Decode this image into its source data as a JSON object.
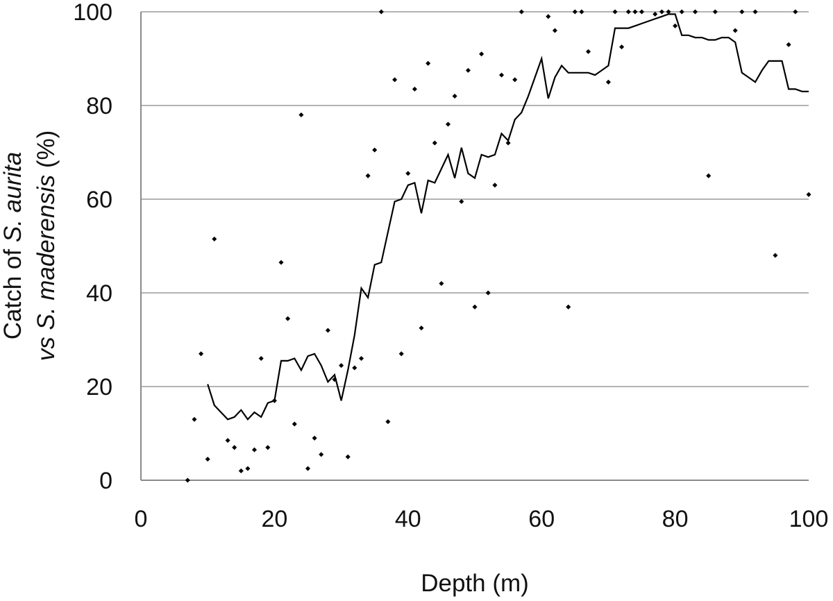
{
  "chart_data": {
    "type": "scatter",
    "title": "",
    "xlabel": "Depth (m)",
    "ylabel": {
      "line1": [
        {
          "text": "Catch of ",
          "italic": false
        },
        {
          "text": "S. aurita",
          "italic": true
        }
      ],
      "line2": [
        {
          "text": "vs",
          "italic": true
        },
        {
          "text": " ",
          "italic": false
        },
        {
          "text": "S. maderensis",
          "italic": true
        },
        {
          "text": " (%)",
          "italic": false
        }
      ]
    },
    "xlim": [
      0,
      100
    ],
    "ylim": [
      0,
      100
    ],
    "x_ticks": [
      0,
      20,
      40,
      60,
      80,
      100
    ],
    "y_ticks": [
      0,
      20,
      40,
      60,
      80,
      100
    ],
    "x_tick_labels": [
      "0",
      "20",
      "40",
      "60",
      "80",
      "100"
    ],
    "y_tick_labels": [
      "0",
      "20",
      "40",
      "60",
      "80",
      "100"
    ],
    "grid": "horizontal",
    "colors": {
      "line": "#000000",
      "points": "#000000",
      "grid": "#9a9a9a",
      "axis": "#8a8a8a",
      "text": "#111111"
    },
    "series": [
      {
        "kind": "points",
        "points": [
          [
            7,
            0
          ],
          [
            8,
            13
          ],
          [
            9,
            27
          ],
          [
            10,
            4.5
          ],
          [
            11,
            51.5
          ],
          [
            13,
            8.5
          ],
          [
            14,
            7
          ],
          [
            15,
            2
          ],
          [
            16,
            2.5
          ],
          [
            17,
            6.5
          ],
          [
            18,
            26
          ],
          [
            19,
            7
          ],
          [
            20,
            17
          ],
          [
            21,
            46.5
          ],
          [
            22,
            34.5
          ],
          [
            23,
            12
          ],
          [
            24,
            78
          ],
          [
            25,
            2.5
          ],
          [
            26,
            9
          ],
          [
            27,
            5.5
          ],
          [
            28,
            32
          ],
          [
            29,
            21.5
          ],
          [
            30,
            24.5
          ],
          [
            31,
            5
          ],
          [
            32,
            24
          ],
          [
            33,
            26
          ],
          [
            34,
            65
          ],
          [
            35,
            70.5
          ],
          [
            36,
            100
          ],
          [
            37,
            12.5
          ],
          [
            38,
            85.5
          ],
          [
            39,
            27
          ],
          [
            40,
            65.5
          ],
          [
            41,
            83.5
          ],
          [
            42,
            32.5
          ],
          [
            43,
            89
          ],
          [
            44,
            72
          ],
          [
            45,
            42
          ],
          [
            46,
            76
          ],
          [
            47,
            82
          ],
          [
            48,
            59.5
          ],
          [
            49,
            87.5
          ],
          [
            50,
            37
          ],
          [
            51,
            91
          ],
          [
            52,
            40
          ],
          [
            53,
            63
          ],
          [
            54,
            86.5
          ],
          [
            55,
            72
          ],
          [
            56,
            85.5
          ],
          [
            57,
            100
          ],
          [
            61,
            99
          ],
          [
            62,
            96
          ],
          [
            64,
            37
          ],
          [
            65,
            100
          ],
          [
            66,
            100
          ],
          [
            67,
            91.5
          ],
          [
            70,
            85
          ],
          [
            71,
            100
          ],
          [
            72,
            92.5
          ],
          [
            73,
            100
          ],
          [
            74,
            100
          ],
          [
            75,
            100
          ],
          [
            77,
            99.5
          ],
          [
            78,
            100
          ],
          [
            79,
            100
          ],
          [
            80,
            97
          ],
          [
            81,
            100
          ],
          [
            83,
            100
          ],
          [
            85,
            65
          ],
          [
            86,
            100
          ],
          [
            89,
            96
          ],
          [
            90,
            100
          ],
          [
            92,
            100
          ],
          [
            95,
            48
          ],
          [
            97,
            93
          ],
          [
            98,
            100
          ],
          [
            100,
            61
          ]
        ]
      },
      {
        "kind": "line",
        "points": [
          [
            10,
            20.5
          ],
          [
            11,
            16
          ],
          [
            12,
            14.5
          ],
          [
            13,
            13
          ],
          [
            14,
            13.5
          ],
          [
            15,
            15
          ],
          [
            16,
            13
          ],
          [
            17,
            14.5
          ],
          [
            18,
            13.5
          ],
          [
            19,
            16.5
          ],
          [
            20,
            17
          ],
          [
            21,
            25.5
          ],
          [
            22,
            25.5
          ],
          [
            23,
            26
          ],
          [
            24,
            23.5
          ],
          [
            25,
            26.5
          ],
          [
            26,
            27
          ],
          [
            27,
            24.5
          ],
          [
            28,
            21
          ],
          [
            29,
            22.5
          ],
          [
            30,
            17
          ],
          [
            31,
            23.5
          ],
          [
            32,
            31
          ],
          [
            33,
            41
          ],
          [
            34,
            39
          ],
          [
            35,
            46
          ],
          [
            36,
            46.5
          ],
          [
            37,
            53
          ],
          [
            38,
            59.5
          ],
          [
            39,
            60
          ],
          [
            40,
            63
          ],
          [
            41,
            63.5
          ],
          [
            42,
            57
          ],
          [
            43,
            64
          ],
          [
            44,
            63.5
          ],
          [
            45,
            66.5
          ],
          [
            46,
            69.5
          ],
          [
            47,
            64.5
          ],
          [
            48,
            71
          ],
          [
            49,
            65.5
          ],
          [
            50,
            64.5
          ],
          [
            51,
            69.5
          ],
          [
            52,
            69
          ],
          [
            53,
            69.5
          ],
          [
            54,
            74
          ],
          [
            55,
            72.5
          ],
          [
            56,
            77
          ],
          [
            57,
            78.5
          ],
          [
            58,
            82
          ],
          [
            59,
            86
          ],
          [
            60,
            90
          ],
          [
            61,
            81.5
          ],
          [
            62,
            86
          ],
          [
            63,
            88.5
          ],
          [
            64,
            87
          ],
          [
            65,
            87
          ],
          [
            66,
            87
          ],
          [
            67,
            87
          ],
          [
            68,
            86.5
          ],
          [
            69,
            87.5
          ],
          [
            70,
            88.5
          ],
          [
            71,
            96.5
          ],
          [
            72,
            96.5
          ],
          [
            73,
            96.5
          ],
          [
            74,
            97
          ],
          [
            75,
            97.5
          ],
          [
            76,
            98
          ],
          [
            77,
            98.5
          ],
          [
            78,
            99
          ],
          [
            79,
            99.5
          ],
          [
            80,
            99.5
          ],
          [
            81,
            95
          ],
          [
            82,
            95
          ],
          [
            83,
            94.5
          ],
          [
            84,
            94.5
          ],
          [
            85,
            94
          ],
          [
            86,
            94
          ],
          [
            87,
            94.5
          ],
          [
            88,
            94.5
          ],
          [
            89,
            93.5
          ],
          [
            90,
            87
          ],
          [
            91,
            86
          ],
          [
            92,
            85
          ],
          [
            93,
            87.5
          ],
          [
            94,
            89.5
          ],
          [
            95,
            89.5
          ],
          [
            96,
            89.5
          ],
          [
            97,
            83.5
          ],
          [
            98,
            83.5
          ],
          [
            99,
            83
          ],
          [
            100,
            83
          ]
        ]
      }
    ]
  }
}
